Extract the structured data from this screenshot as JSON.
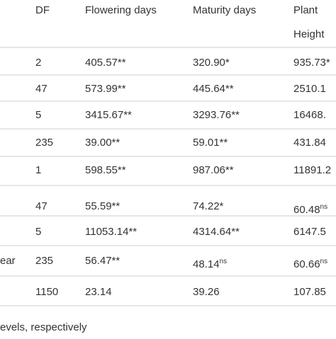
{
  "table": {
    "header": {
      "df": "DF",
      "flowering": "Flowering days",
      "maturity": "Maturity days",
      "height": [
        "Plant",
        "Height"
      ]
    },
    "rows": [
      {
        "df": "2",
        "flowering": "405.57**",
        "maturity": "320.90*",
        "height": "935.73*"
      },
      {
        "df": "47",
        "flowering": "573.99**",
        "maturity": "445.64**",
        "height": "2510.1"
      },
      {
        "df": "5",
        "flowering": "3415.67**",
        "maturity": "3293.76**",
        "height": "16468."
      },
      {
        "df": "235",
        "flowering": "39.00**",
        "maturity": "59.01**",
        "height": "431.84"
      },
      {
        "df": "1",
        "flowering": "598.55**",
        "maturity": "987.06**",
        "height": "11891.2"
      },
      {
        "df": "47",
        "flowering": "55.59**",
        "maturity": "74.22*",
        "height": {
          "text": "60.48",
          "sup": "ns"
        }
      },
      {
        "df": "5",
        "flowering": "11053.14**",
        "maturity": "4314.64**",
        "height": "6147.5"
      },
      {
        "label": "ear",
        "df": "235",
        "flowering": "56.47**",
        "maturity": {
          "text": "48.14",
          "sup": "ns"
        },
        "height": {
          "text": "60.66",
          "sup": "ns"
        }
      },
      {
        "df": "1150",
        "flowering": "23.14",
        "maturity": "39.26",
        "height": "107.85"
      }
    ],
    "footnote": "evels, respectively"
  }
}
